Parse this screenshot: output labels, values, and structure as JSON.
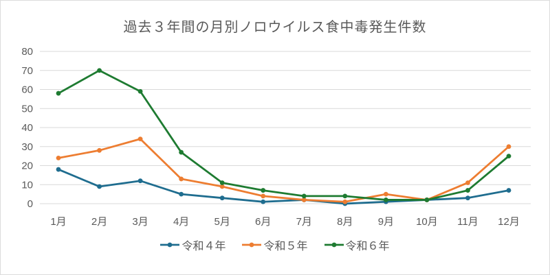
{
  "chart_data": {
    "type": "line",
    "title": "過去３年間の月別ノロウイルス食中毒発生件数",
    "categories": [
      "1月",
      "2月",
      "3月",
      "4月",
      "5月",
      "6月",
      "7月",
      "8月",
      "9月",
      "10月",
      "11月",
      "12月"
    ],
    "series": [
      {
        "name": "令和４年",
        "color": "#1f6d8f",
        "values": [
          18,
          9,
          12,
          5,
          3,
          1,
          2,
          0,
          1,
          2,
          3,
          7
        ]
      },
      {
        "name": "令和５年",
        "color": "#ed7d31",
        "values": [
          24,
          28,
          34,
          13,
          9,
          4,
          2,
          1,
          5,
          2,
          11,
          30
        ]
      },
      {
        "name": "令和６年",
        "color": "#1e7b31",
        "values": [
          58,
          70,
          59,
          27,
          11,
          7,
          4,
          4,
          2,
          2,
          7,
          25
        ]
      }
    ],
    "ylim": [
      0,
      80
    ],
    "ytick_step": 10,
    "xlabel": "",
    "ylabel": "",
    "grid": "horizontal",
    "legend_position": "bottom"
  },
  "styles": {
    "text_color": "#595959",
    "grid_color": "#d9d9d9",
    "background": "#ffffff"
  }
}
